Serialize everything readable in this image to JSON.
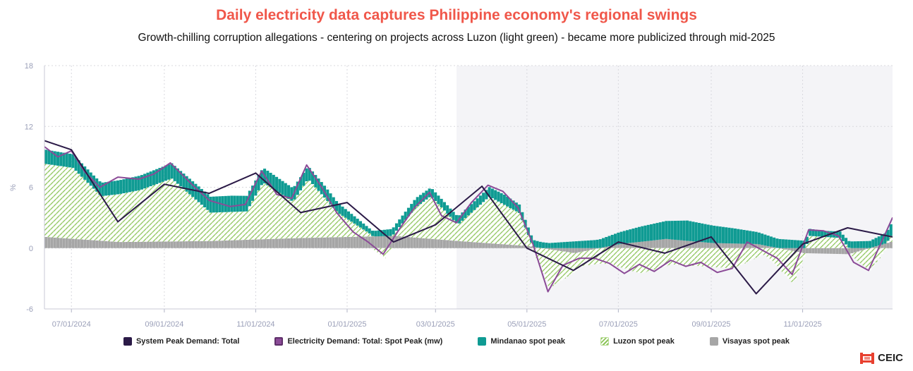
{
  "chart_data": {
    "type": "area",
    "title": "Daily electricity data captures Philippine economy's regional swings",
    "subtitle": "Growth-chilling corruption allegations - centering on projects across Luzon (light green) - became more publicized through mid-2025",
    "ylabel": "%",
    "xlabel": "",
    "ylim": [
      -6,
      18
    ],
    "yticks": [
      -6,
      0,
      6,
      12,
      18
    ],
    "xlim": [
      "2024-06-13",
      "2025-12-31"
    ],
    "xticks": [
      "2024-07-01",
      "2024-09-01",
      "2024-11-01",
      "2025-01-01",
      "2025-03-01",
      "2025-05-01",
      "2025-07-01",
      "2025-09-01",
      "2025-11-01"
    ],
    "xtick_labels": [
      "07/01/2024",
      "09/01/2024",
      "11/01/2024",
      "01/01/2025",
      "03/01/2025",
      "05/01/2025",
      "07/01/2025",
      "09/01/2025",
      "11/01/2025"
    ],
    "shaded_region": [
      "2025-03-15",
      "2025-12-31"
    ],
    "grid": true,
    "legend_position": "bottom",
    "series": [
      {
        "name": "System Peak Demand: Total",
        "kind": "line",
        "color": "#2b1a47",
        "x": [
          "2024-06-13",
          "2024-07-01",
          "2024-08-01",
          "2024-09-01",
          "2024-10-01",
          "2024-11-01",
          "2024-12-01",
          "2025-01-01",
          "2025-02-01",
          "2025-03-01",
          "2025-04-01",
          "2025-05-01",
          "2025-06-01",
          "2025-07-01",
          "2025-08-01",
          "2025-09-01",
          "2025-10-01",
          "2025-11-01",
          "2025-12-01",
          "2025-12-31"
        ],
        "y": [
          10.6,
          9.7,
          2.6,
          6.3,
          5.4,
          7.4,
          3.5,
          4.5,
          0.6,
          2.3,
          6.1,
          0.0,
          -2.2,
          0.6,
          -0.5,
          1.1,
          -4.5,
          0.4,
          2.0,
          1.1
        ]
      },
      {
        "name": "Electricity Demand: Total: Spot Peak (mw)",
        "kind": "line",
        "color": "#8b4b97",
        "x": [
          "2024-06-13",
          "2024-06-22",
          "2024-07-01",
          "2024-07-10",
          "2024-07-20",
          "2024-08-01",
          "2024-08-15",
          "2024-08-25",
          "2024-09-05",
          "2024-09-20",
          "2024-10-01",
          "2024-10-15",
          "2024-10-25",
          "2024-11-05",
          "2024-11-15",
          "2024-11-25",
          "2024-12-05",
          "2024-12-15",
          "2024-12-25",
          "2025-01-05",
          "2025-01-15",
          "2025-01-25",
          "2025-02-05",
          "2025-02-15",
          "2025-02-25",
          "2025-03-05",
          "2025-03-15",
          "2025-03-25",
          "2025-04-05",
          "2025-04-15",
          "2025-04-25",
          "2025-05-05",
          "2025-05-15",
          "2025-05-25",
          "2025-06-05",
          "2025-06-15",
          "2025-06-25",
          "2025-07-05",
          "2025-07-15",
          "2025-07-25",
          "2025-08-05",
          "2025-08-15",
          "2025-08-25",
          "2025-09-05",
          "2025-09-15",
          "2025-09-25",
          "2025-10-05",
          "2025-10-15",
          "2025-10-25",
          "2025-11-05",
          "2025-11-15",
          "2025-11-25",
          "2025-12-05",
          "2025-12-15",
          "2025-12-31"
        ],
        "y": [
          10.0,
          9.0,
          9.6,
          7.5,
          6.0,
          7.0,
          6.8,
          7.3,
          8.4,
          6.2,
          4.7,
          4.1,
          4.3,
          7.6,
          5.3,
          4.9,
          8.2,
          6.0,
          3.5,
          1.6,
          0.6,
          -0.6,
          1.9,
          4.0,
          5.5,
          3.2,
          2.5,
          4.5,
          6.2,
          5.6,
          4.0,
          0.4,
          -4.3,
          -1.7,
          -1.0,
          -1.0,
          -1.5,
          -2.5,
          -1.6,
          -2.3,
          -1.2,
          -1.8,
          -1.4,
          -2.4,
          -2.0,
          0.6,
          -0.2,
          -1.0,
          -2.6,
          1.8,
          1.7,
          1.2,
          -1.4,
          -2.2,
          3.0
        ]
      },
      {
        "name": "Mindanao spot peak",
        "kind": "stacked-area",
        "color": "#0f9b93",
        "x": [
          "2024-06-13",
          "2024-07-15",
          "2024-09-01",
          "2024-10-15",
          "2024-11-15",
          "2024-12-15",
          "2025-01-15",
          "2025-02-15",
          "2025-03-15",
          "2025-04-15",
          "2025-05-15",
          "2025-06-15",
          "2025-07-15",
          "2025-08-15",
          "2025-09-15",
          "2025-10-15",
          "2025-11-15",
          "2025-12-15",
          "2025-12-31"
        ],
        "y": [
          1.4,
          1.3,
          1.5,
          1.6,
          1.4,
          1.2,
          0.5,
          0.9,
          0.8,
          1.0,
          0.5,
          0.8,
          1.5,
          2.0,
          1.5,
          0.9,
          0.6,
          0.7,
          1.2
        ]
      },
      {
        "name": "Luzon spot peak",
        "kind": "stacked-area",
        "color": "#8dc55a",
        "pattern": "hatched",
        "x": [
          "2024-06-13",
          "2024-07-01",
          "2024-07-20",
          "2024-08-15",
          "2024-09-05",
          "2024-10-01",
          "2024-10-25",
          "2024-11-05",
          "2024-11-25",
          "2024-12-05",
          "2024-12-25",
          "2025-01-15",
          "2025-01-25",
          "2025-02-15",
          "2025-02-25",
          "2025-03-15",
          "2025-04-05",
          "2025-04-25",
          "2025-05-15",
          "2025-06-05",
          "2025-06-25",
          "2025-07-15",
          "2025-08-05",
          "2025-08-25",
          "2025-09-15",
          "2025-10-05",
          "2025-10-25",
          "2025-11-05",
          "2025-11-25",
          "2025-12-15",
          "2025-12-31"
        ],
        "y": [
          7.2,
          7.0,
          4.4,
          5.1,
          6.2,
          2.8,
          2.8,
          5.6,
          3.6,
          5.8,
          2.4,
          0.3,
          -1.0,
          3.0,
          4.2,
          1.6,
          4.6,
          3.2,
          -3.8,
          -1.4,
          -1.6,
          -2.5,
          -1.6,
          -1.8,
          -2.0,
          -0.6,
          -3.2,
          1.2,
          1.0,
          -2.2,
          1.0
        ]
      },
      {
        "name": "Visayas spot peak",
        "kind": "stacked-area",
        "color": "#a6a6a6",
        "x": [
          "2024-06-13",
          "2024-08-01",
          "2024-10-01",
          "2024-12-01",
          "2025-02-01",
          "2025-03-15",
          "2025-05-01",
          "2025-06-01",
          "2025-07-01",
          "2025-08-01",
          "2025-09-01",
          "2025-10-01",
          "2025-11-01",
          "2025-12-01",
          "2025-12-31"
        ],
        "y": [
          1.1,
          0.6,
          0.7,
          1.0,
          1.2,
          0.7,
          0.2,
          -0.5,
          0.4,
          0.9,
          0.5,
          0.4,
          -0.5,
          -0.6,
          0.7
        ]
      }
    ]
  },
  "legend": {
    "items": [
      {
        "label": "System Peak Demand: Total",
        "color": "#2b1a47",
        "style": "solid"
      },
      {
        "label": "Electricity Demand: Total: Spot Peak (mw)",
        "color": "#8b4b97",
        "style": "outlined"
      },
      {
        "label": "Mindanao spot peak",
        "color": "#0f9b93",
        "style": "solid"
      },
      {
        "label": "Luzon spot peak",
        "color": "#8dc55a",
        "style": "hatched"
      },
      {
        "label": "Visayas spot peak",
        "color": "#a6a6a6",
        "style": "solid"
      }
    ]
  },
  "brand": {
    "name": "CEIC",
    "color": "#e8402f"
  }
}
